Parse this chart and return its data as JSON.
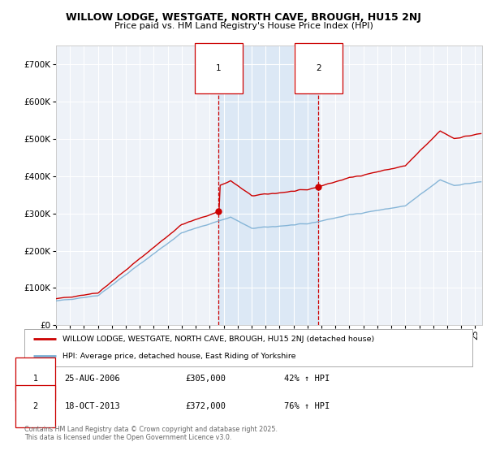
{
  "title1": "WILLOW LODGE, WESTGATE, NORTH CAVE, BROUGH, HU15 2NJ",
  "title2": "Price paid vs. HM Land Registry's House Price Index (HPI)",
  "bg_color": "#ffffff",
  "plot_bg_color": "#eef2f8",
  "grid_color": "#ffffff",
  "red_line_color": "#cc0000",
  "blue_line_color": "#7bafd4",
  "vline_color": "#cc0000",
  "highlight_color": "#dce8f5",
  "sale1_year_float": 2006.6389,
  "sale1_price": 305000,
  "sale2_year_float": 2013.7917,
  "sale2_price": 372000,
  "legend_line1": "WILLOW LODGE, WESTGATE, NORTH CAVE, BROUGH, HU15 2NJ (detached house)",
  "legend_line2": "HPI: Average price, detached house, East Riding of Yorkshire",
  "note1_date": "25-AUG-2006",
  "note1_price": "£305,000",
  "note1_hpi": "42% ↑ HPI",
  "note2_date": "18-OCT-2013",
  "note2_price": "£372,000",
  "note2_hpi": "76% ↑ HPI",
  "copyright": "Contains HM Land Registry data © Crown copyright and database right 2025.\nThis data is licensed under the Open Government Licence v3.0.",
  "ylim": [
    0,
    750000
  ],
  "yticks": [
    0,
    100000,
    200000,
    300000,
    400000,
    500000,
    600000,
    700000
  ],
  "xmin": 1995.0,
  "xmax": 2025.5
}
